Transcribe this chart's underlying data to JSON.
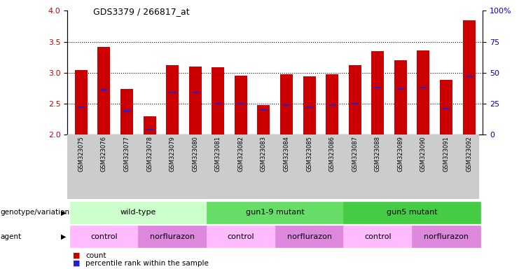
{
  "title": "GDS3379 / 266817_at",
  "samples": [
    "GSM323075",
    "GSM323076",
    "GSM323077",
    "GSM323078",
    "GSM323079",
    "GSM323080",
    "GSM323081",
    "GSM323082",
    "GSM323083",
    "GSM323084",
    "GSM323085",
    "GSM323086",
    "GSM323087",
    "GSM323088",
    "GSM323089",
    "GSM323090",
    "GSM323091",
    "GSM323092"
  ],
  "counts": [
    3.04,
    3.42,
    2.74,
    2.3,
    3.12,
    3.1,
    3.09,
    2.95,
    2.48,
    2.97,
    2.94,
    2.97,
    3.12,
    3.35,
    3.2,
    3.36,
    2.88,
    3.85
  ],
  "percentile_ranks": [
    0.22,
    0.36,
    0.19,
    0.04,
    0.34,
    0.34,
    0.25,
    0.25,
    0.2,
    0.24,
    0.22,
    0.24,
    0.25,
    0.38,
    0.37,
    0.38,
    0.21,
    0.47
  ],
  "ymin": 2.0,
  "ymax": 4.0,
  "yticks": [
    2.0,
    2.5,
    3.0,
    3.5,
    4.0
  ],
  "right_yticks": [
    0,
    25,
    50,
    75,
    100
  ],
  "right_ytick_labels": [
    "0",
    "25",
    "50",
    "75",
    "100%"
  ],
  "bar_color": "#cc0000",
  "percentile_color": "#2222cc",
  "bg_color": "#ffffff",
  "tick_label_color": "#cc0000",
  "right_tick_color": "#0000cc",
  "genotype_groups": [
    {
      "label": "wild-type",
      "start": 0,
      "end": 5,
      "color": "#ccffcc"
    },
    {
      "label": "gun1-9 mutant",
      "start": 6,
      "end": 11,
      "color": "#66dd66"
    },
    {
      "label": "gun5 mutant",
      "start": 12,
      "end": 17,
      "color": "#44cc44"
    }
  ],
  "agent_groups": [
    {
      "label": "control",
      "start": 0,
      "end": 2,
      "color": "#ffbbff"
    },
    {
      "label": "norflurazon",
      "start": 3,
      "end": 5,
      "color": "#dd88dd"
    },
    {
      "label": "control",
      "start": 6,
      "end": 8,
      "color": "#ffbbff"
    },
    {
      "label": "norflurazon",
      "start": 9,
      "end": 11,
      "color": "#dd88dd"
    },
    {
      "label": "control",
      "start": 12,
      "end": 14,
      "color": "#ffbbff"
    },
    {
      "label": "norflurazon",
      "start": 15,
      "end": 17,
      "color": "#dd88dd"
    }
  ],
  "legend_count_color": "#cc0000",
  "legend_pct_color": "#2222cc"
}
